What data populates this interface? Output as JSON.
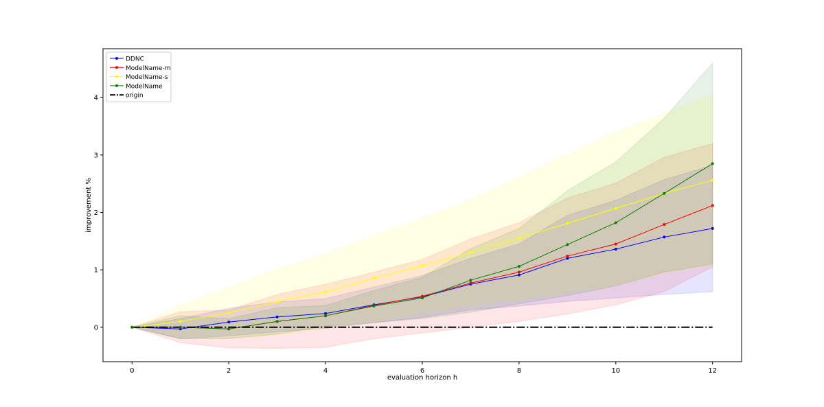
{
  "chart_data": {
    "type": "line",
    "title": "",
    "xlabel": "evaluation horizon h",
    "ylabel": "improvement %",
    "xlim": [
      -0.6,
      12.6
    ],
    "ylim": [
      -0.6,
      4.85
    ],
    "xticks": [
      0,
      2,
      4,
      6,
      8,
      10,
      12
    ],
    "yticks": [
      0,
      1,
      2,
      3,
      4
    ],
    "legend_position": "top-left",
    "grid": false,
    "x": [
      0,
      1,
      2,
      3,
      4,
      5,
      6,
      7,
      8,
      9,
      10,
      11,
      12
    ],
    "series": [
      {
        "name": "DDNC",
        "color": "#0000ff",
        "values": [
          0,
          -0.03,
          0.09,
          0.18,
          0.24,
          0.39,
          0.53,
          0.75,
          0.91,
          1.2,
          1.36,
          1.57,
          1.72
        ],
        "band_lower": [
          0,
          -0.2,
          -0.15,
          -0.08,
          -0.02,
          0.08,
          0.17,
          0.3,
          0.37,
          0.45,
          0.51,
          0.57,
          0.62
        ],
        "band_upper": [
          0,
          0.15,
          0.33,
          0.44,
          0.5,
          0.7,
          0.9,
          1.2,
          1.45,
          1.95,
          2.21,
          2.57,
          2.82
        ]
      },
      {
        "name": "ModelName-m",
        "color": "#ff0000",
        "values": [
          0,
          0.0,
          -0.03,
          0.1,
          0.2,
          0.38,
          0.54,
          0.77,
          0.96,
          1.24,
          1.45,
          1.79,
          2.12
        ],
        "band_lower": [
          0,
          -0.27,
          -0.36,
          -0.37,
          -0.35,
          -0.2,
          -0.1,
          0.0,
          0.1,
          0.23,
          0.39,
          0.62,
          1.05
        ],
        "band_upper": [
          0,
          0.27,
          0.3,
          0.57,
          0.75,
          0.96,
          1.18,
          1.54,
          1.82,
          2.25,
          2.51,
          2.96,
          3.2
        ]
      },
      {
        "name": "ModelName-s",
        "color": "#ffff00",
        "values": [
          0,
          0.1,
          0.25,
          0.44,
          0.62,
          0.85,
          1.07,
          1.3,
          1.55,
          1.81,
          2.07,
          2.33,
          2.56
        ],
        "band_lower": [
          0,
          -0.18,
          -0.18,
          -0.13,
          -0.03,
          0.1,
          0.25,
          0.38,
          0.5,
          0.61,
          0.74,
          0.94,
          1.08
        ],
        "band_upper": [
          0,
          0.38,
          0.68,
          1.01,
          1.27,
          1.6,
          1.89,
          2.22,
          2.6,
          3.01,
          3.4,
          3.72,
          4.04
        ]
      },
      {
        "name": "ModelName",
        "color": "#008000",
        "values": [
          0,
          0.0,
          -0.03,
          0.1,
          0.2,
          0.37,
          0.51,
          0.82,
          1.06,
          1.44,
          1.82,
          2.33,
          2.85
        ],
        "band_lower": [
          0,
          -0.2,
          -0.2,
          -0.12,
          0.02,
          0.08,
          0.15,
          0.26,
          0.41,
          0.55,
          0.72,
          0.96,
          1.1
        ],
        "band_upper": [
          0,
          0.2,
          0.15,
          0.34,
          0.38,
          0.64,
          0.87,
          1.37,
          1.72,
          2.38,
          2.88,
          3.64,
          4.6
        ]
      },
      {
        "name": "origin",
        "color": "#000000",
        "style": "dash-dot",
        "values": [
          0,
          0,
          0,
          0,
          0,
          0,
          0,
          0,
          0,
          0,
          0,
          0,
          0
        ]
      }
    ]
  }
}
